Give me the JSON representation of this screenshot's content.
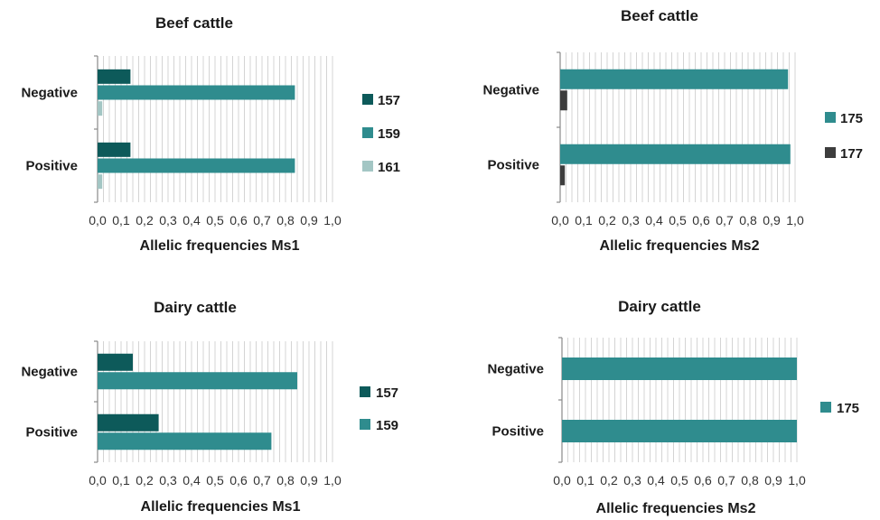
{
  "chart_data": [
    {
      "type": "bar",
      "orientation": "horizontal",
      "title": "Beef cattle",
      "xlabel": "Allelic frequencies Ms1",
      "ylabel": "",
      "xlim": [
        0,
        1
      ],
      "tick_labels": [
        "0,0",
        "0,1",
        "0,2",
        "0,3",
        "0,4",
        "0,5",
        "0,6",
        "0,7",
        "0,8",
        "0,9",
        "1,0"
      ],
      "categories": [
        "Negative",
        "Positive"
      ],
      "series": [
        {
          "name": "157",
          "color": "#0d5a5a",
          "values": [
            0.14,
            0.14
          ]
        },
        {
          "name": "159",
          "color": "#2f8c8e",
          "values": [
            0.84,
            0.84
          ]
        },
        {
          "name": "161",
          "color": "#a3c6c4",
          "values": [
            0.02,
            0.02
          ]
        }
      ],
      "grid": true,
      "legend": "right"
    },
    {
      "type": "bar",
      "orientation": "horizontal",
      "title": "Beef cattle",
      "xlabel": "Allelic frequencies Ms2",
      "ylabel": "",
      "xlim": [
        0,
        1
      ],
      "tick_labels": [
        "0,0",
        "0,1",
        "0,2",
        "0,3",
        "0,4",
        "0,5",
        "0,6",
        "0,7",
        "0,8",
        "0,9",
        "1,0"
      ],
      "categories": [
        "Negative",
        "Positive"
      ],
      "series": [
        {
          "name": "175",
          "color": "#2f8c8e",
          "values": [
            0.97,
            0.98
          ]
        },
        {
          "name": "177",
          "color": "#3d3d3d",
          "values": [
            0.03,
            0.02
          ]
        }
      ],
      "grid": true,
      "legend": "right"
    },
    {
      "type": "bar",
      "orientation": "horizontal",
      "title": "Dairy cattle",
      "xlabel": "Allelic frequencies Ms1",
      "ylabel": "",
      "xlim": [
        0,
        1
      ],
      "tick_labels": [
        "0,0",
        "0,1",
        "0,2",
        "0,3",
        "0,4",
        "0,5",
        "0,6",
        "0,7",
        "0,8",
        "0,9",
        "1,0"
      ],
      "categories": [
        "Negative",
        "Positive"
      ],
      "series": [
        {
          "name": "157",
          "color": "#0d5a5a",
          "values": [
            0.15,
            0.26
          ]
        },
        {
          "name": "159",
          "color": "#2f8c8e",
          "values": [
            0.85,
            0.74
          ]
        }
      ],
      "grid": true,
      "legend": "right"
    },
    {
      "type": "bar",
      "orientation": "horizontal",
      "title": "Dairy cattle",
      "xlabel": "Allelic frequencies Ms2",
      "ylabel": "",
      "xlim": [
        0,
        1
      ],
      "tick_labels": [
        "0,0",
        "0,1",
        "0,2",
        "0,3",
        "0,4",
        "0,5",
        "0,6",
        "0,7",
        "0,8",
        "0,9",
        "1,0"
      ],
      "categories": [
        "Negative",
        "Positive"
      ],
      "series": [
        {
          "name": "175",
          "color": "#2f8c8e",
          "values": [
            1.0,
            1.0
          ]
        }
      ],
      "grid": true,
      "legend": "right"
    }
  ]
}
